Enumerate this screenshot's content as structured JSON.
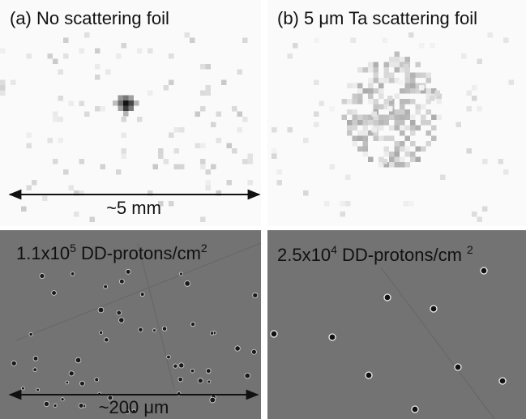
{
  "panels": [
    {
      "title": "(a) No scattering foil",
      "scale_label": "~5 mm"
    },
    {
      "title": "(b) 5 μm Ta scattering foil"
    },
    {
      "fluence": {
        "mantissa": "1.1x10",
        "exponent": "5",
        "unit": " DD-protons/cm",
        "unit_exponent": "2"
      },
      "scale_label": "~200 μm"
    },
    {
      "fluence": {
        "mantissa": "2.5x10",
        "exponent": "4",
        "unit": " DD-protons/cm ",
        "unit_exponent": "2"
      }
    }
  ]
}
